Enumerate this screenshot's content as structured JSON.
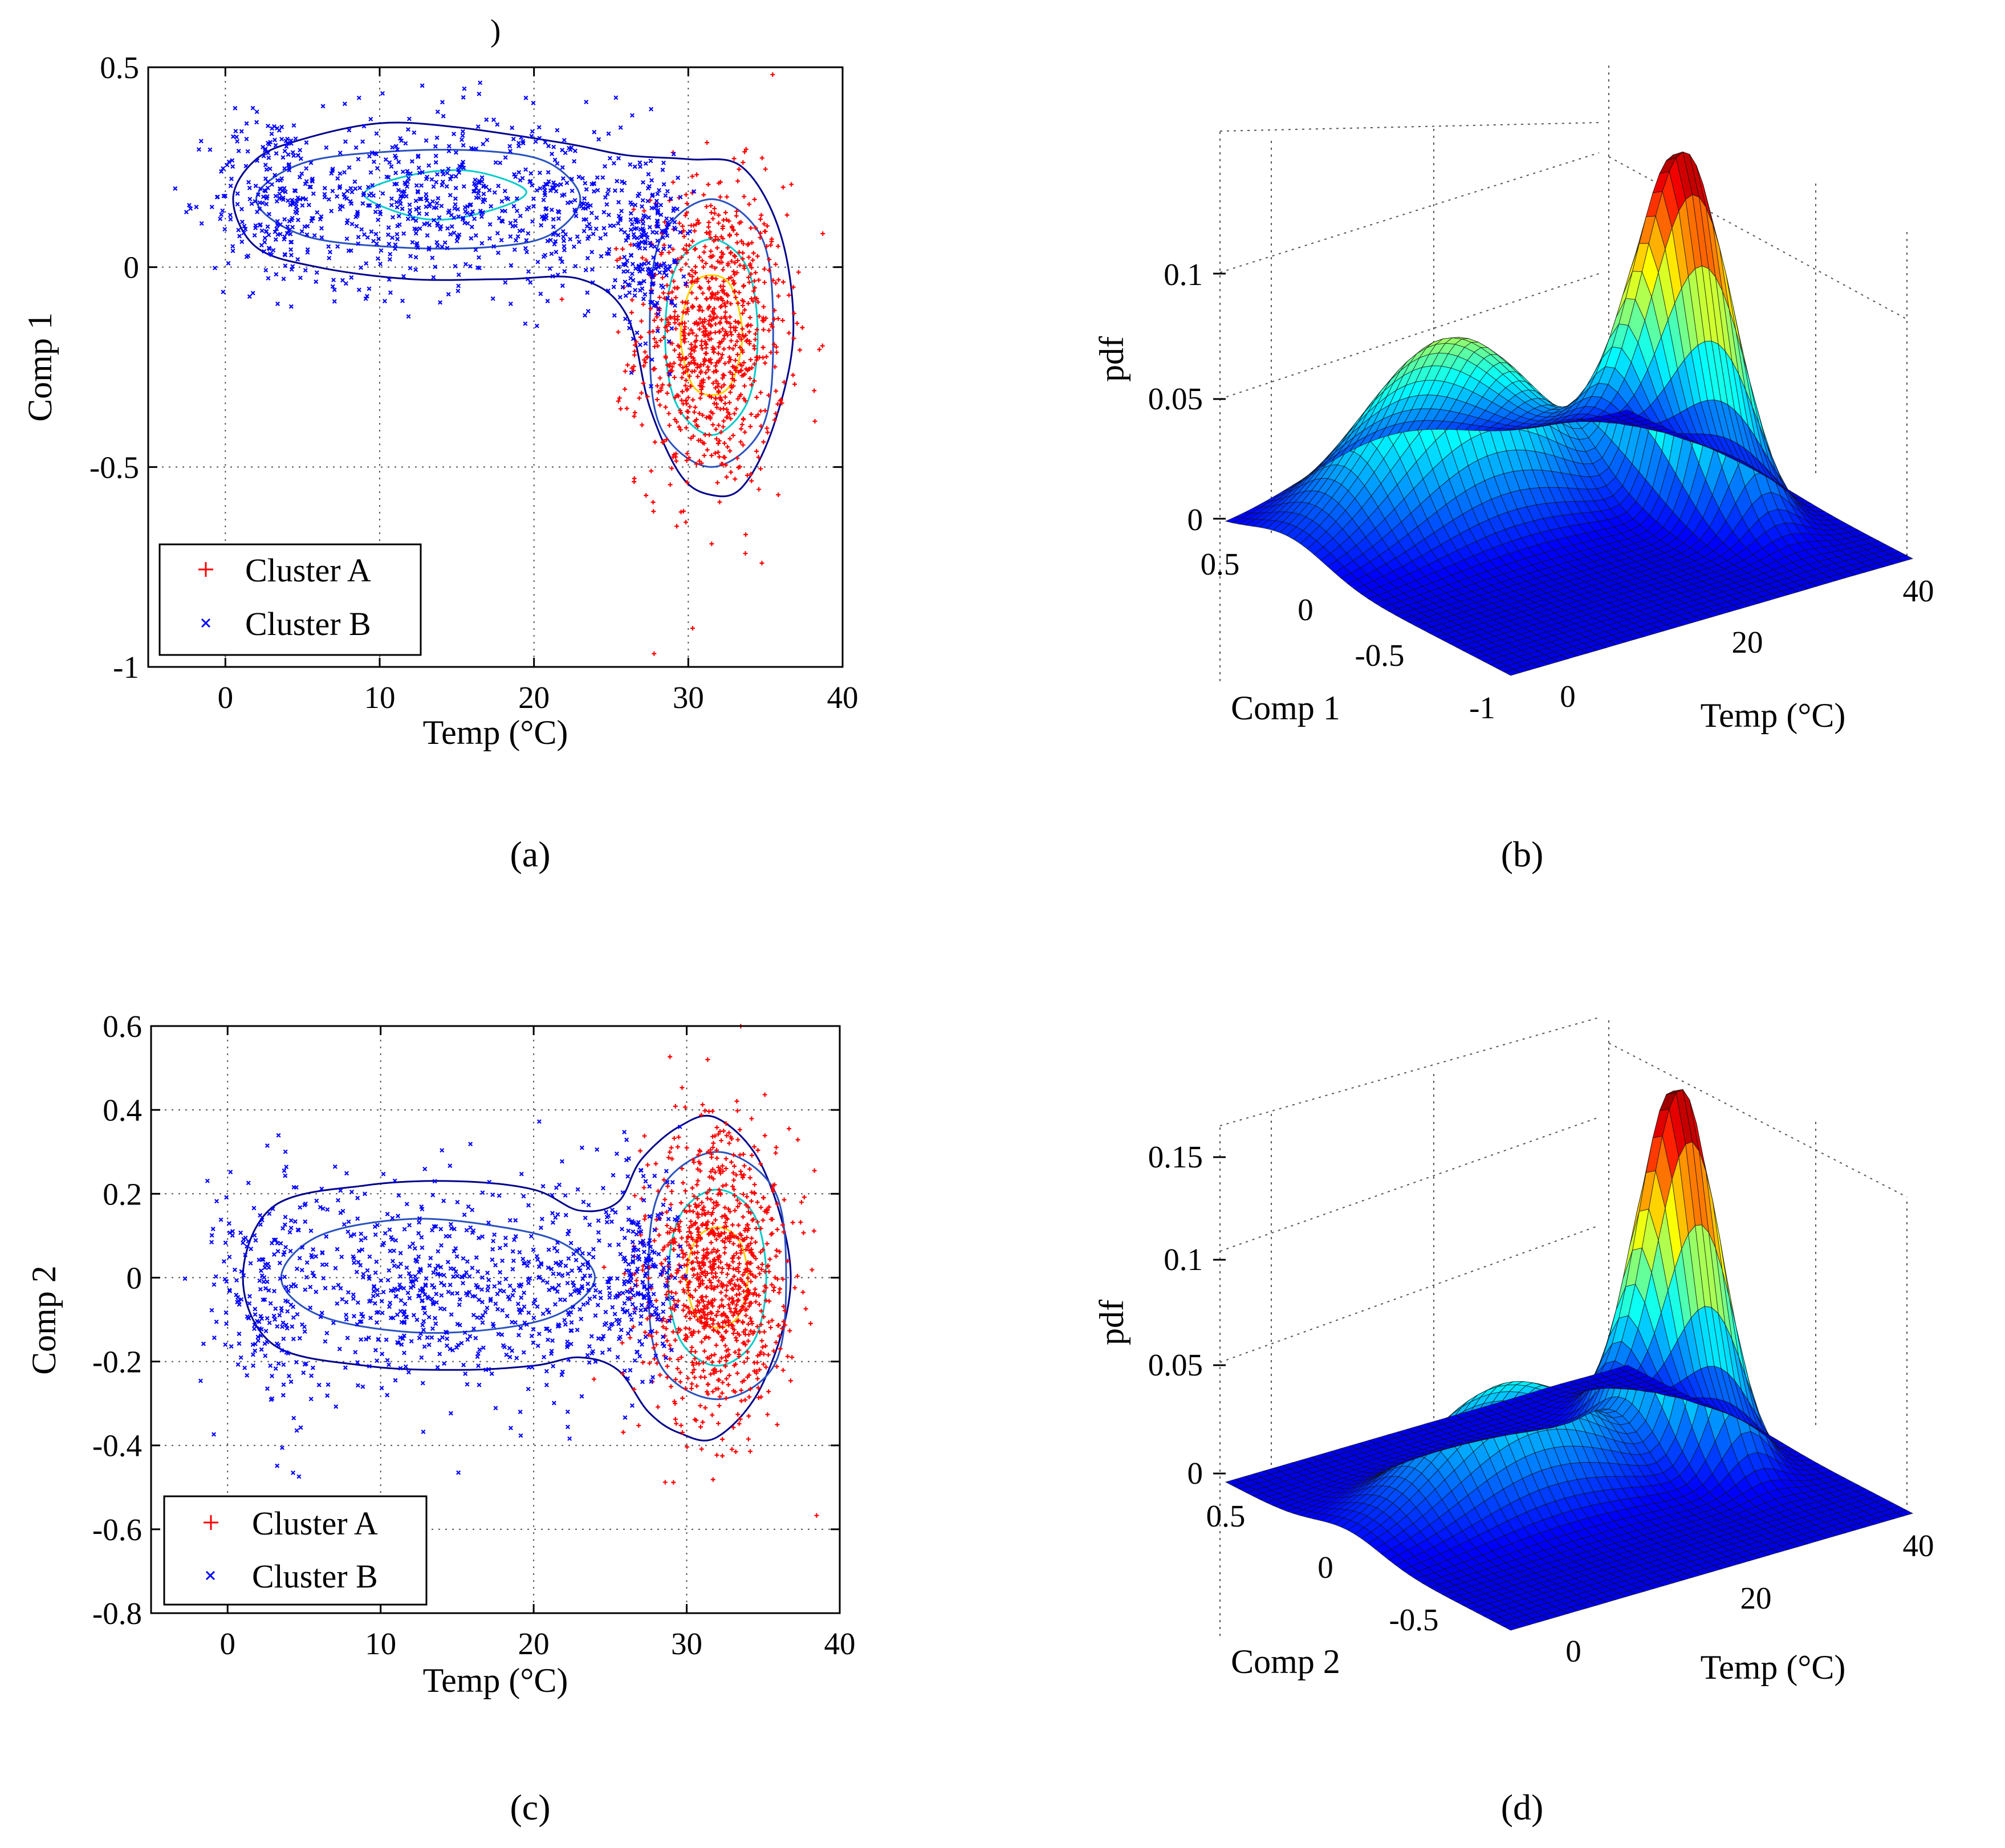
{
  "figure": {
    "stray_mark": ")",
    "colors": {
      "cluster_a": "#ff0000",
      "cluster_b": "#0000ff",
      "contour_outer": "#00008b",
      "contour_mid": "#2a52be",
      "contour_inner": "#00cccc",
      "contour_core": "#ffd000"
    }
  },
  "chart_data": [
    {
      "id": "a",
      "type": "scatter",
      "caption": "(a)",
      "xlabel": "Temp (°C)",
      "ylabel": "Comp 1",
      "xlim": [
        -5,
        40
      ],
      "ylim": [
        -1,
        0.5
      ],
      "xticks": [
        0,
        10,
        20,
        30,
        40
      ],
      "yticks": [
        -1,
        -0.5,
        0,
        0.5
      ],
      "xtick_labels": [
        "0",
        "10",
        "20",
        "30",
        "40"
      ],
      "ytick_labels": [
        "-1",
        "-0.5",
        "0",
        "0.5"
      ],
      "grid": true,
      "legend": {
        "location": "bottom-left",
        "entries": [
          "Cluster A",
          "Cluster B"
        ]
      },
      "series": [
        {
          "name": "Cluster A",
          "marker": "+",
          "count": 900,
          "blobs": [
            {
              "cx": 31.5,
              "cy": -0.17,
              "sx": 2.4,
              "sy": 0.19
            }
          ]
        },
        {
          "name": "Cluster B",
          "marker": "x",
          "count": 1100,
          "blobs": [
            {
              "cx": 3,
              "cy": 0.17,
              "sx": 2.0,
              "sy": 0.11
            },
            {
              "cx": 9.5,
              "cy": 0.17,
              "sx": 3.0,
              "sy": 0.11
            },
            {
              "cx": 15,
              "cy": 0.17,
              "sx": 2.5,
              "sy": 0.11
            },
            {
              "cx": 22,
              "cy": 0.15,
              "sx": 2.2,
              "sy": 0.11
            },
            {
              "cx": 27.5,
              "cy": 0.05,
              "sx": 1.0,
              "sy": 0.12
            }
          ]
        }
      ],
      "contours": [
        {
          "level": "outer",
          "points": [
            [
              0.5,
              0.17
            ],
            [
              2,
              0.05
            ],
            [
              6,
              0.0
            ],
            [
              12,
              -0.03
            ],
            [
              18,
              -0.03
            ],
            [
              23,
              -0.03
            ],
            [
              26,
              -0.12
            ],
            [
              27.5,
              -0.35
            ],
            [
              29.5,
              -0.52
            ],
            [
              31.5,
              -0.57
            ],
            [
              33.5,
              -0.55
            ],
            [
              35.5,
              -0.4
            ],
            [
              36.8,
              -0.17
            ],
            [
              36,
              0.08
            ],
            [
              33.5,
              0.25
            ],
            [
              30,
              0.27
            ],
            [
              26,
              0.28
            ],
            [
              22,
              0.31
            ],
            [
              15,
              0.35
            ],
            [
              10,
              0.36
            ],
            [
              5,
              0.32
            ],
            [
              2,
              0.27
            ]
          ]
        },
        {
          "level": "mid",
          "points": [
            [
              2,
              0.17
            ],
            [
              5,
              0.08
            ],
            [
              11,
              0.05
            ],
            [
              17,
              0.05
            ],
            [
              21,
              0.08
            ],
            [
              23,
              0.17
            ],
            [
              21,
              0.26
            ],
            [
              17,
              0.29
            ],
            [
              11,
              0.29
            ],
            [
              5,
              0.26
            ]
          ]
        },
        {
          "level": "mid",
          "points": [
            [
              27.5,
              -0.17
            ],
            [
              28.2,
              -0.4
            ],
            [
              31.5,
              -0.5
            ],
            [
              34.8,
              -0.4
            ],
            [
              35.5,
              -0.17
            ],
            [
              34.8,
              0.07
            ],
            [
              31.5,
              0.17
            ],
            [
              28.2,
              0.07
            ]
          ]
        },
        {
          "level": "inner",
          "points": [
            [
              9,
              0.18
            ],
            [
              13,
              0.12
            ],
            [
              17,
              0.14
            ],
            [
              19.5,
              0.19
            ],
            [
              16,
              0.24
            ],
            [
              12,
              0.23
            ]
          ]
        },
        {
          "level": "inner",
          "points": [
            [
              28.5,
              -0.17
            ],
            [
              29.2,
              -0.34
            ],
            [
              31.5,
              -0.42
            ],
            [
              33.8,
              -0.34
            ],
            [
              34.5,
              -0.17
            ],
            [
              33.8,
              0.0
            ],
            [
              31.5,
              0.07
            ],
            [
              29.2,
              0.0
            ]
          ]
        },
        {
          "level": "core",
          "points": [
            [
              29.5,
              -0.17
            ],
            [
              30.2,
              -0.29
            ],
            [
              31.5,
              -0.32
            ],
            [
              32.8,
              -0.29
            ],
            [
              33.5,
              -0.17
            ],
            [
              32.8,
              -0.05
            ],
            [
              31.5,
              -0.02
            ],
            [
              30.2,
              -0.05
            ]
          ]
        }
      ]
    },
    {
      "id": "b",
      "type": "surface",
      "caption": "(b)",
      "xlabel": "Temp (°C)",
      "ylabel": "Comp 1",
      "zlabel": "pdf",
      "xlim": [
        -5,
        40
      ],
      "ylim": [
        -1,
        0.5
      ],
      "zlim": [
        0,
        0.14
      ],
      "x_tick_labels": [
        "0",
        "20",
        "40"
      ],
      "y_tick_labels": [
        "-1",
        "-0.5",
        "0",
        "0.5"
      ],
      "z_tick_labels": [
        "0",
        "0.05",
        "0.1"
      ],
      "peaks": [
        {
          "x": 32,
          "y": -0.17,
          "height": 0.139,
          "sx": 2.8,
          "sy": 0.22
        },
        {
          "x": 13,
          "y": 0.17,
          "height": 0.07,
          "sx": 9.0,
          "sy": 0.2
        }
      ]
    },
    {
      "id": "c",
      "type": "scatter",
      "caption": "(c)",
      "xlabel": "Temp (°C)",
      "ylabel": "Comp 2",
      "xlim": [
        -5,
        40
      ],
      "ylim": [
        -0.8,
        0.6
      ],
      "xticks": [
        0,
        10,
        20,
        30,
        40
      ],
      "yticks": [
        -0.8,
        -0.6,
        -0.4,
        -0.2,
        0,
        0.2,
        0.4,
        0.6
      ],
      "xtick_labels": [
        "0",
        "10",
        "20",
        "30",
        "40"
      ],
      "ytick_labels": [
        "-0.8",
        "-0.6",
        "-0.4",
        "-0.2",
        "0",
        "0.2",
        "0.4",
        "0.6"
      ],
      "grid": true,
      "legend": {
        "location": "bottom-left",
        "entries": [
          "Cluster A",
          "Cluster B"
        ]
      },
      "series": [
        {
          "name": "Cluster A",
          "marker": "+",
          "count": 1000,
          "blobs": [
            {
              "cx": 32,
              "cy": 0.0,
              "sx": 2.4,
              "sy": 0.17
            }
          ]
        },
        {
          "name": "Cluster B",
          "marker": "x",
          "count": 1100,
          "blobs": [
            {
              "cx": 2.5,
              "cy": -0.02,
              "sx": 1.8,
              "sy": 0.14
            },
            {
              "cx": 9.5,
              "cy": -0.02,
              "sx": 3.0,
              "sy": 0.13
            },
            {
              "cx": 15,
              "cy": -0.02,
              "sx": 2.5,
              "sy": 0.13
            },
            {
              "cx": 22,
              "cy": -0.02,
              "sx": 2.3,
              "sy": 0.13
            },
            {
              "cx": 27,
              "cy": 0.0,
              "sx": 1.2,
              "sy": 0.13
            }
          ]
        }
      ],
      "contours": [
        {
          "level": "outer",
          "points": [
            [
              1,
              0.0
            ],
            [
              3,
              -0.16
            ],
            [
              9,
              -0.21
            ],
            [
              15,
              -0.22
            ],
            [
              20,
              -0.21
            ],
            [
              23,
              -0.19
            ],
            [
              25.5,
              -0.22
            ],
            [
              27.5,
              -0.32
            ],
            [
              29.5,
              -0.37
            ],
            [
              32,
              -0.38
            ],
            [
              35,
              -0.25
            ],
            [
              36.8,
              0.0
            ],
            [
              35,
              0.26
            ],
            [
              32,
              0.38
            ],
            [
              29.5,
              0.36
            ],
            [
              27,
              0.28
            ],
            [
              25.5,
              0.18
            ],
            [
              23,
              0.16
            ],
            [
              20,
              0.21
            ],
            [
              15,
              0.23
            ],
            [
              9,
              0.22
            ],
            [
              3,
              0.17
            ]
          ]
        },
        {
          "level": "mid",
          "points": [
            [
              3.5,
              0.0
            ],
            [
              6,
              -0.09
            ],
            [
              12,
              -0.13
            ],
            [
              18,
              -0.12
            ],
            [
              22,
              -0.08
            ],
            [
              24,
              0.0
            ],
            [
              22,
              0.08
            ],
            [
              18,
              0.12
            ],
            [
              12,
              0.14
            ],
            [
              6,
              0.1
            ]
          ]
        },
        {
          "level": "mid",
          "points": [
            [
              27.5,
              0.0
            ],
            [
              28.3,
              -0.21
            ],
            [
              32,
              -0.29
            ],
            [
              35.7,
              -0.21
            ],
            [
              36.5,
              0.0
            ],
            [
              35.7,
              0.21
            ],
            [
              32,
              0.3
            ],
            [
              28.3,
              0.21
            ]
          ]
        },
        {
          "level": "inner",
          "points": [
            [
              28.8,
              0.0
            ],
            [
              29.6,
              -0.15
            ],
            [
              32,
              -0.21
            ],
            [
              34.4,
              -0.15
            ],
            [
              35.2,
              0.0
            ],
            [
              34.4,
              0.15
            ],
            [
              32,
              0.21
            ],
            [
              29.6,
              0.15
            ]
          ]
        },
        {
          "level": "core",
          "points": [
            [
              30,
              0.0
            ],
            [
              30.6,
              -0.09
            ],
            [
              32,
              -0.12
            ],
            [
              33.4,
              -0.09
            ],
            [
              34,
              0.0
            ],
            [
              33.4,
              0.09
            ],
            [
              32,
              0.12
            ],
            [
              30.6,
              0.09
            ]
          ]
        }
      ]
    },
    {
      "id": "d",
      "type": "surface",
      "caption": "(d)",
      "xlabel": "Temp (°C)",
      "ylabel": "Comp 2",
      "zlabel": "pdf",
      "xlim": [
        -5,
        40
      ],
      "ylim": [
        -0.8,
        0.6
      ],
      "zlim": [
        0,
        0.17
      ],
      "x_tick_labels": [
        "0",
        "20",
        "40"
      ],
      "y_tick_labels": [
        "-0.5",
        "0",
        "0.5"
      ],
      "z_tick_labels": [
        "0",
        "0.05",
        "0.1",
        "0.15"
      ],
      "peaks": [
        {
          "x": 32,
          "y": 0.0,
          "height": 0.168,
          "sx": 2.6,
          "sy": 0.17
        },
        {
          "x": 13,
          "y": 0.0,
          "height": 0.054,
          "sx": 9.0,
          "sy": 0.16
        }
      ]
    }
  ]
}
